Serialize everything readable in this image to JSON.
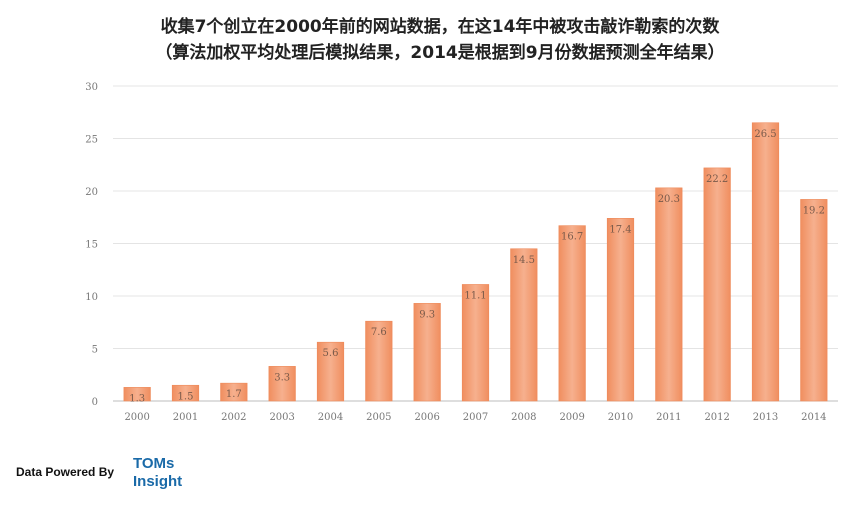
{
  "title_line1": "收集7个创立在2000年前的网站数据，在这14年中被攻击敲诈勒索的次数",
  "title_line2": "（算法加权平均处理后模拟结果，2014是根据到9月份数据预测全年结果）",
  "footer": {
    "label": "Data Powered By",
    "brand_line1": "TOMs",
    "brand_line2": "Insight"
  },
  "chart_data": {
    "type": "bar",
    "title": "收集7个创立在2000年前的网站数据，在这14年中被攻击敲诈勒索的次数",
    "subtitle": "（算法加权平均处理后模拟结果，2014是根据到9月份数据预测全年结果）",
    "categories": [
      "2000",
      "2001",
      "2002",
      "2003",
      "2004",
      "2005",
      "2006",
      "2007",
      "2008",
      "2009",
      "2010",
      "2011",
      "2012",
      "2013",
      "2014"
    ],
    "values": [
      1.3,
      1.5,
      1.7,
      3.3,
      5.6,
      7.6,
      9.3,
      11.1,
      14.5,
      16.7,
      17.4,
      20.3,
      22.2,
      26.5,
      19.2
    ],
    "value_labels": [
      "1.3",
      "1.5",
      "1.7",
      "3.3",
      "5.6",
      "7.6",
      "9.3",
      "11.1",
      "14.5",
      "16.7",
      "17.4",
      "20.3",
      "22.2",
      "26.5",
      "19.2"
    ],
    "ylim": [
      0,
      30
    ],
    "yticks": [
      "0",
      "5",
      "10",
      "15",
      "20",
      "25",
      "30"
    ],
    "grid": true,
    "bar_color": "#f2a27b"
  }
}
